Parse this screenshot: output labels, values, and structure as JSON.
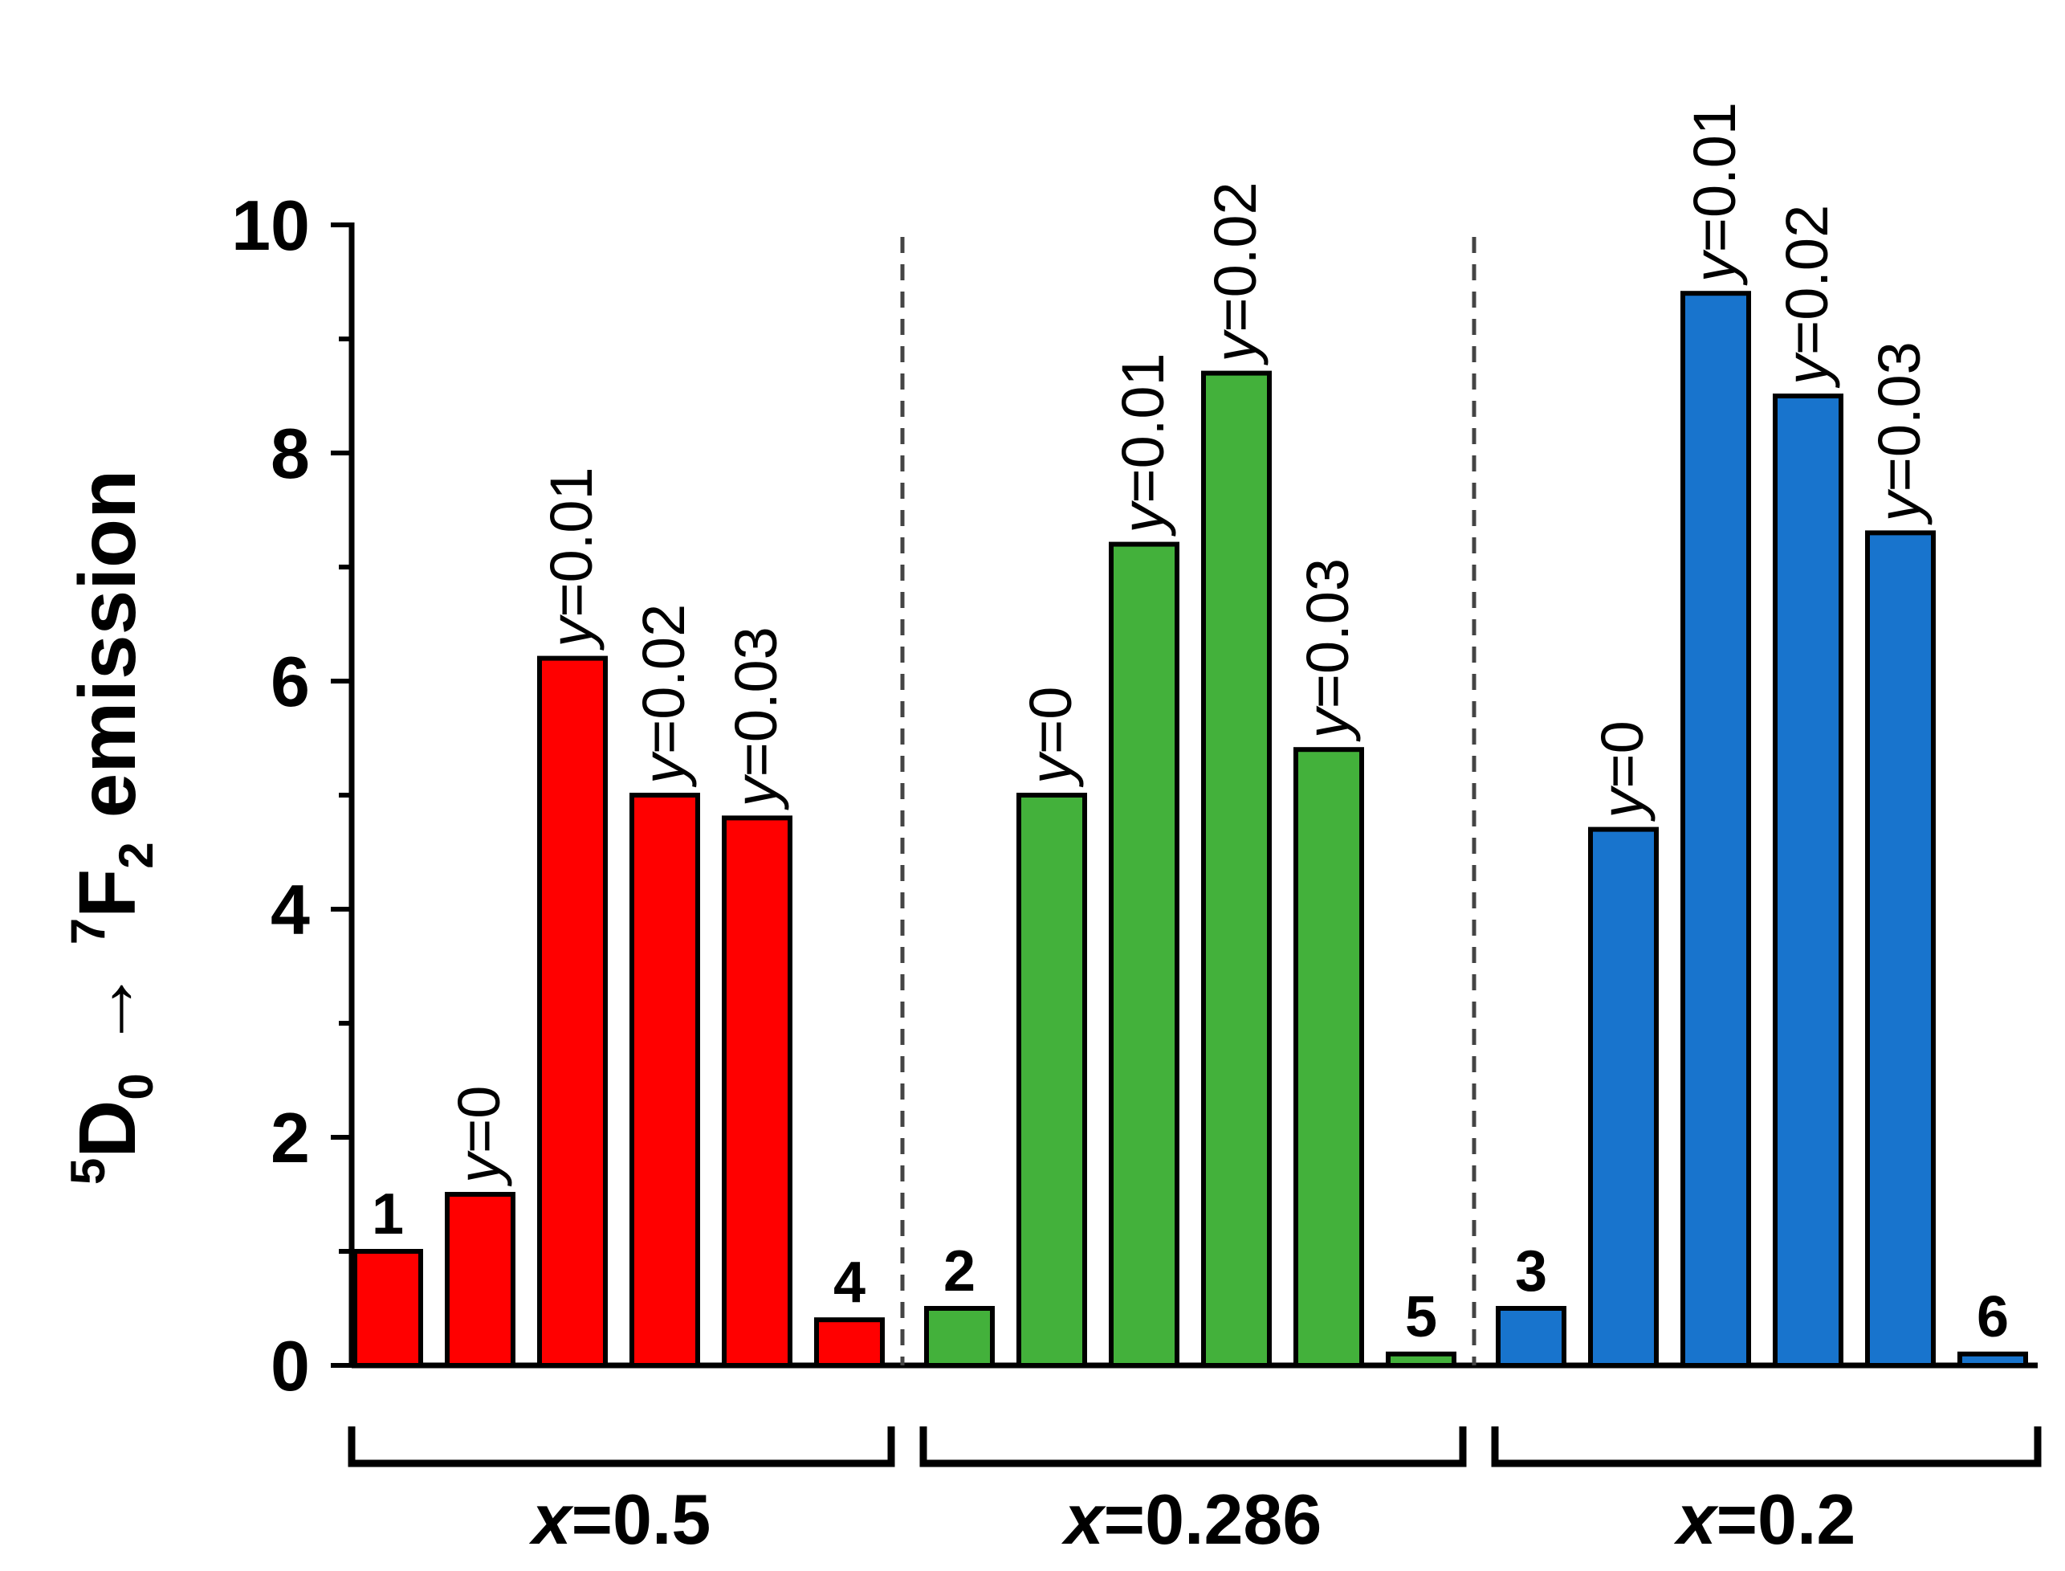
{
  "chart_data": {
    "type": "bar",
    "ylabel": {
      "sup_a": "5",
      "main_a": "D",
      "sub_a": "0",
      "arrow": "→",
      "sup_b": "7",
      "main_b": "F",
      "sub_b": "2",
      "rest": "emission"
    },
    "ylim": [
      0,
      10
    ],
    "yticks": [
      "0",
      "2",
      "4",
      "6",
      "8",
      "10"
    ],
    "groups": [
      {
        "label_var": "x",
        "label_val": "=0.5",
        "color": "#ff0000",
        "bars": [
          {
            "value": 1.0,
            "label": "1",
            "label_type": "number"
          },
          {
            "value": 1.5,
            "label_var": "y",
            "label_val": "=0",
            "label_type": "y"
          },
          {
            "value": 6.2,
            "label_var": "y",
            "label_val": "=0.01",
            "label_type": "y"
          },
          {
            "value": 5.0,
            "label_var": "y",
            "label_val": "=0.02",
            "label_type": "y"
          },
          {
            "value": 4.8,
            "label_var": "y",
            "label_val": "=0.03",
            "label_type": "y"
          },
          {
            "value": 0.4,
            "label": "4",
            "label_type": "number"
          }
        ]
      },
      {
        "label_var": "x",
        "label_val": "=0.286",
        "color": "#43b13b",
        "bars": [
          {
            "value": 0.5,
            "label": "2",
            "label_type": "number"
          },
          {
            "value": 5.0,
            "label_var": "y",
            "label_val": "=0",
            "label_type": "y"
          },
          {
            "value": 7.2,
            "label_var": "y",
            "label_val": "=0.01",
            "label_type": "y"
          },
          {
            "value": 8.7,
            "label_var": "y",
            "label_val": "=0.02",
            "label_type": "y"
          },
          {
            "value": 5.4,
            "label_var": "y",
            "label_val": "=0.03",
            "label_type": "y"
          },
          {
            "value": 0.1,
            "label": "5",
            "label_type": "number"
          }
        ]
      },
      {
        "label_var": "x",
        "label_val": "=0.2",
        "color": "#1874cd",
        "bars": [
          {
            "value": 0.5,
            "label": "3",
            "label_type": "number"
          },
          {
            "value": 4.7,
            "label_var": "y",
            "label_val": "=0",
            "label_type": "y"
          },
          {
            "value": 9.4,
            "label_var": "y",
            "label_val": "=0.01",
            "label_type": "y"
          },
          {
            "value": 8.5,
            "label_var": "y",
            "label_val": "=0.02",
            "label_type": "y"
          },
          {
            "value": 7.3,
            "label_var": "y",
            "label_val": "=0.03",
            "label_type": "y"
          },
          {
            "value": 0.1,
            "label": "6",
            "label_type": "number"
          }
        ]
      }
    ]
  }
}
